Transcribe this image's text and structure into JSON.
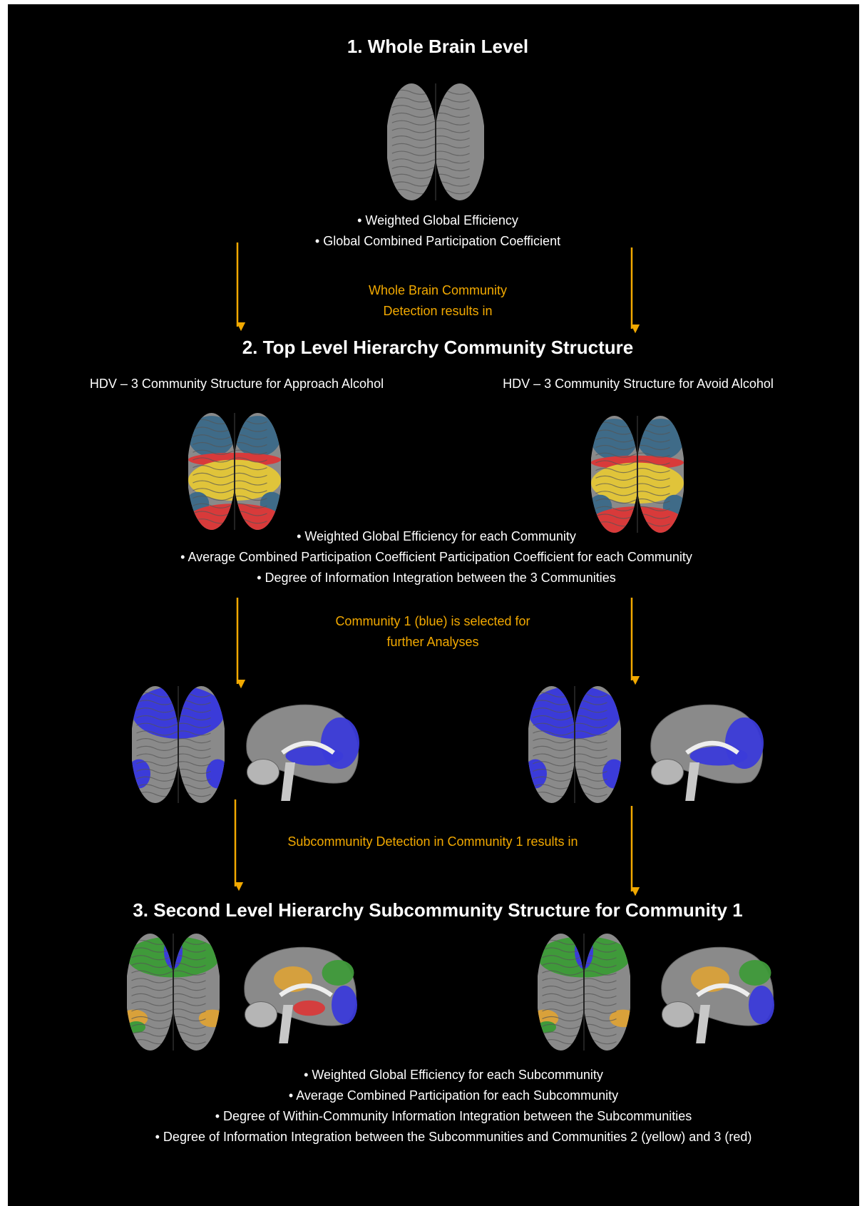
{
  "level1": {
    "title": "1.  Whole Brain Level",
    "bullets": [
      "• Weighted Global Efficiency",
      "• Global Combined Participation Coefficient"
    ],
    "transition": [
      "Whole Brain Community",
      "Detection  results in"
    ]
  },
  "level2": {
    "title": "2. Top Level Hierarchy Community Structure",
    "left_label": "HDV – 3 Community Structure for Approach Alcohol",
    "right_label": "HDV – 3 Community Structure for Avoid Alcohol",
    "bullets": [
      "• Weighted Global Efficiency for each Community",
      "• Average Combined Participation Coefficient Participation Coefficient for each Community",
      "• Degree of Information Integration between the 3 Communities"
    ],
    "transition": [
      "Community  1 (blue) is selected for",
      "further Analyses"
    ],
    "transition2": "Subcommunity Detection in Community 1 results in"
  },
  "level3": {
    "title": "3. Second Level Hierarchy Subcommunity Structure for Community 1",
    "bullets": [
      "• Weighted Global Efficiency for each Subcommunity",
      "• Average Combined Participation for each Subcommunity",
      "• Degree of Within-Community Information Integration between the Subcommunities",
      "• Degree of Information Integration between the Subcommunities and  Communities 2 (yellow) and 3 (red)"
    ]
  }
}
